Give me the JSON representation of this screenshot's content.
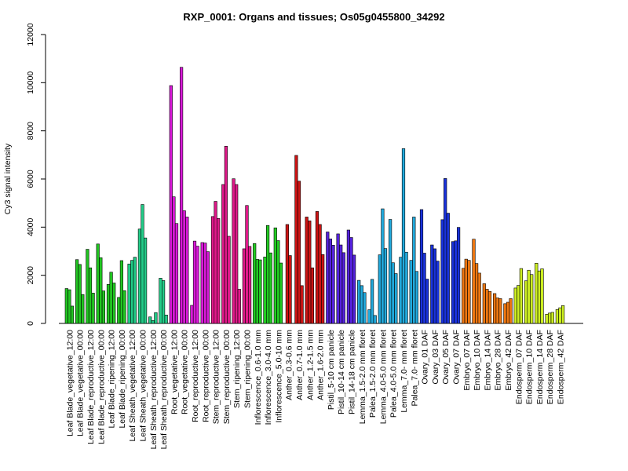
{
  "chart_data": {
    "type": "bar",
    "title": "RXP_0001: Organs and tissues; Os05g0455800_34292",
    "xlabel": "",
    "ylabel": "Cy3 signal intensity",
    "ylim": [
      0,
      12000
    ],
    "yticks": [
      0,
      2000,
      4000,
      6000,
      8000,
      10000,
      12000
    ],
    "grid": false,
    "legend": "none",
    "x_tick_labels": [
      "Leaf Blade_vegetative_12:00",
      "Leaf Blade_vegetative_00:00",
      "Leaf Blade_reproductive_12:00",
      "Leaf Blade_reproductive_00:00",
      "Leaf Blade_ripening_12:00",
      "Leaf Blade_ripening_00:00",
      "Leaf Sheath_vegetative_12:00",
      "Leaf Sheath_vegetative_00:00",
      "Leaf Sheath_reproductive_12:00",
      "Leaf Sheath_reproductive_00:00",
      "Root_vegetative_12:00",
      "Root_vegetative_00:00",
      "Root_reproductive_12:00",
      "Root_reproductive_00:00",
      "Stem_reproductive_12:00",
      "Stem_reproductive_00:00",
      "Stem_ripening_12:00",
      "Stem_ripening_00:00",
      "Inflorescence_0.6-1.0 mm",
      "Inflorescence_3.0-4.0 mm",
      "Inflorescence_5.0-10 mm",
      "Anther_0.3-0.6 mm",
      "Anther_0.7-1.0 mm",
      "Anther_1.2-1.5 mm",
      "Anther_1.6-2.0 mm",
      "Pistil_5-10 cm panicle",
      "Pistil_10-14 cm panicle",
      "Pistil_14-18 cm panicle",
      "Lemma_1.5-2.0 mm floret",
      "Palea_1.5-2.0 mm floret",
      "Lemma_4.0-5.0 mm floret",
      "Palea_4.0-5.0 mm floret",
      "Lemma_7.0- mm floret",
      "Palea_7.0- mm floret",
      "Ovary_01 DAF",
      "Ovary_03 DAF",
      "Ovary_05 DAF",
      "Ovary_07 DAF",
      "Embryo_07 DAF",
      "Embryo_10 DAF",
      "Embryo_14 DAF",
      "Embryo_28 DAF",
      "Embryo_42 DAF",
      "Endosperm_07 DAF",
      "Endosperm_10 DAF",
      "Endosperm_14 DAF",
      "Endosperm_28 DAF",
      "Endosperm_42 DAF"
    ],
    "groups": [
      {
        "color": "#22c622",
        "values": [
          1450,
          1400,
          720
        ]
      },
      {
        "color": "#22c622",
        "values": [
          2650,
          2450,
          1200
        ]
      },
      {
        "color": "#22c622",
        "values": [
          3080,
          2310,
          1260
        ]
      },
      {
        "color": "#22c622",
        "values": [
          3300,
          2730,
          1350
        ]
      },
      {
        "color": "#22c622",
        "values": [
          1620,
          2130,
          1680
        ]
      },
      {
        "color": "#22c622",
        "values": [
          1080,
          2610,
          1360
        ]
      },
      {
        "color": "#22cc88",
        "values": [
          2470,
          2620,
          2750
        ]
      },
      {
        "color": "#22cc88",
        "values": [
          3920,
          4940,
          3550
        ]
      },
      {
        "color": "#22cc88",
        "values": [
          270,
          120,
          450
        ]
      },
      {
        "color": "#22cc88",
        "values": [
          1880,
          1780,
          350
        ]
      },
      {
        "color": "#d91ad9",
        "values": [
          9880,
          5260,
          4150
        ]
      },
      {
        "color": "#d91ad9",
        "values": [
          10640,
          4680,
          4420
        ]
      },
      {
        "color": "#d91ad9",
        "values": [
          750,
          3420,
          3210
        ]
      },
      {
        "color": "#d91ad9",
        "values": [
          3360,
          3340,
          2980
        ]
      },
      {
        "color": "#e0198a",
        "values": [
          4440,
          5070,
          4360
        ]
      },
      {
        "color": "#e0198a",
        "values": [
          5770,
          7360,
          3620
        ]
      },
      {
        "color": "#e0198a",
        "values": [
          6010,
          5770,
          1420
        ]
      },
      {
        "color": "#e0198a",
        "values": [
          3100,
          4900,
          3200
        ]
      },
      {
        "color": "#22cc22",
        "values": [
          3320,
          2660,
          2640
        ]
      },
      {
        "color": "#22cc22",
        "values": [
          2760,
          4070,
          2930
        ]
      },
      {
        "color": "#22cc22",
        "values": [
          3970,
          3440,
          2510
        ]
      },
      {
        "color": "#cc1414",
        "values": [
          4110,
          2820
        ]
      },
      {
        "color": "#cc1414",
        "values": [
          6980,
          5910,
          1570
        ]
      },
      {
        "color": "#cc1414",
        "values": [
          4420,
          4260,
          2310
        ]
      },
      {
        "color": "#cc1414",
        "values": [
          4650,
          4110,
          2860
        ]
      },
      {
        "color": "#5522dd",
        "values": [
          3800,
          3510,
          3250
        ]
      },
      {
        "color": "#5522dd",
        "values": [
          3720,
          3260,
          2940
        ]
      },
      {
        "color": "#5522dd",
        "values": [
          3880,
          3570,
          2840
        ]
      },
      {
        "color": "#22aadd",
        "values": [
          1790,
          1570,
          1280
        ]
      },
      {
        "color": "#22aadd",
        "values": [
          570,
          1830,
          330
        ]
      },
      {
        "color": "#22aadd",
        "values": [
          2850,
          4760,
          3110
        ]
      },
      {
        "color": "#22aadd",
        "values": [
          4320,
          2520,
          2070
        ]
      },
      {
        "color": "#22aadd",
        "values": [
          2750,
          7260,
          2960
        ]
      },
      {
        "color": "#22aadd",
        "values": [
          2620,
          4420,
          2160
        ]
      },
      {
        "color": "#1a33dd",
        "values": [
          4730,
          2920,
          1840
        ]
      },
      {
        "color": "#1a33dd",
        "values": [
          3260,
          3100,
          2590
        ]
      },
      {
        "color": "#1a33dd",
        "values": [
          4310,
          6020,
          4580
        ]
      },
      {
        "color": "#1a33dd",
        "values": [
          3400,
          3430,
          3990
        ]
      },
      {
        "color": "#ee7711",
        "values": [
          2290,
          2670,
          2620
        ]
      },
      {
        "color": "#ee7711",
        "values": [
          3500,
          2490,
          2090
        ]
      },
      {
        "color": "#ee7711",
        "values": [
          1650,
          1420,
          1330
        ]
      },
      {
        "color": "#ee7711",
        "values": [
          1240,
          1060,
          1030
        ]
      },
      {
        "color": "#ee7711",
        "values": [
          820,
          880,
          1030
        ]
      },
      {
        "color": "#ccee22",
        "values": [
          1470,
          1580,
          2280
        ]
      },
      {
        "color": "#ccee22",
        "values": [
          1770,
          2210,
          2030
        ]
      },
      {
        "color": "#ccee22",
        "values": [
          2500,
          2180,
          2270
        ]
      },
      {
        "color": "#ccee22",
        "values": [
          380,
          430,
          460
        ]
      },
      {
        "color": "#ccee22",
        "values": [
          580,
          650,
          740
        ]
      }
    ]
  }
}
